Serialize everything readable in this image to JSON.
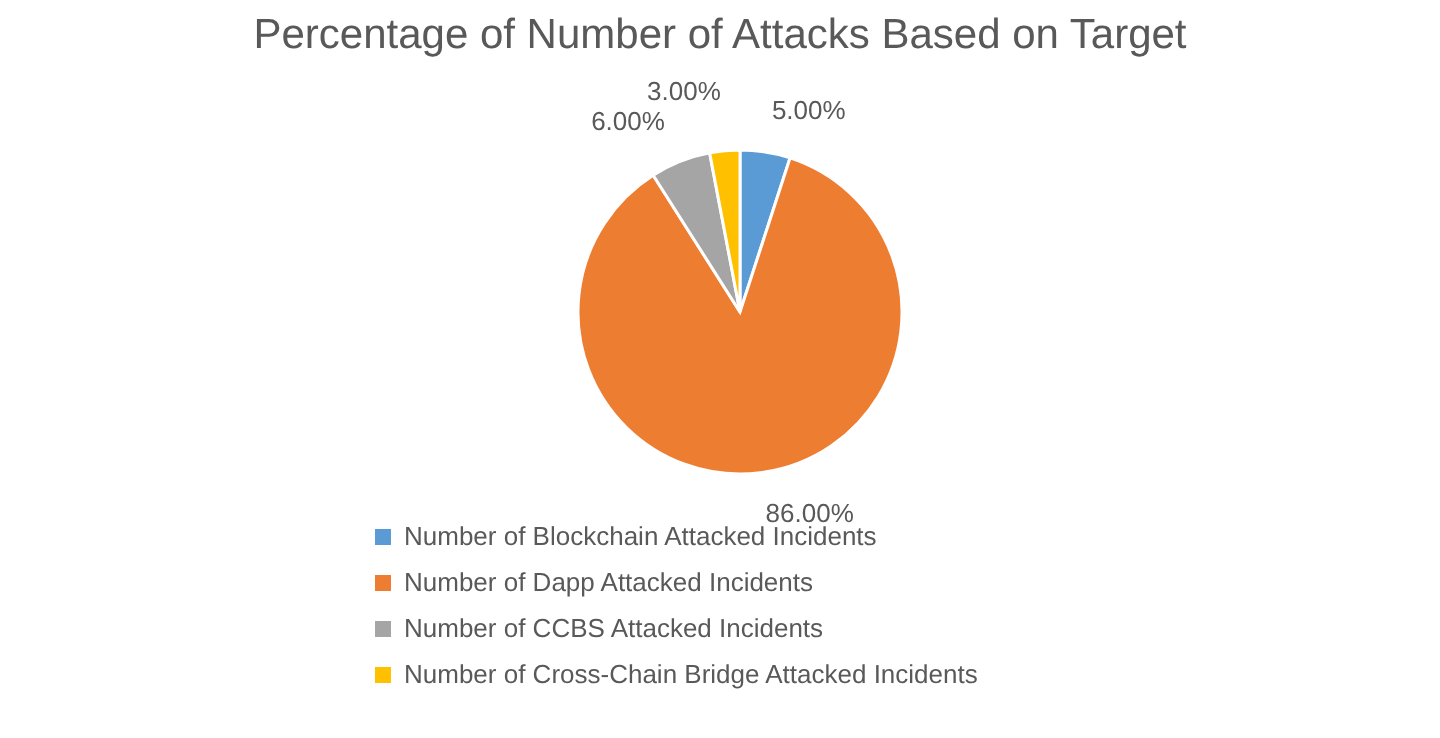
{
  "chart_data": {
    "type": "pie",
    "title": "Percentage of Number of Attacks Based on Target",
    "categories": [
      "Number of Blockchain Attacked Incidents",
      "Number of Dapp Attacked Incidents",
      "Number of CCBS Attacked Incidents",
      "Number of Cross-Chain Bridge Attacked Incidents"
    ],
    "values": [
      5,
      86,
      6,
      3
    ],
    "colors": [
      "#5b9bd5",
      "#ed7d31",
      "#a5a5a5",
      "#ffc000"
    ],
    "value_labels": [
      "5.00%",
      "86.00%",
      "6.00%",
      "3.00%"
    ],
    "legend": "bottom"
  }
}
